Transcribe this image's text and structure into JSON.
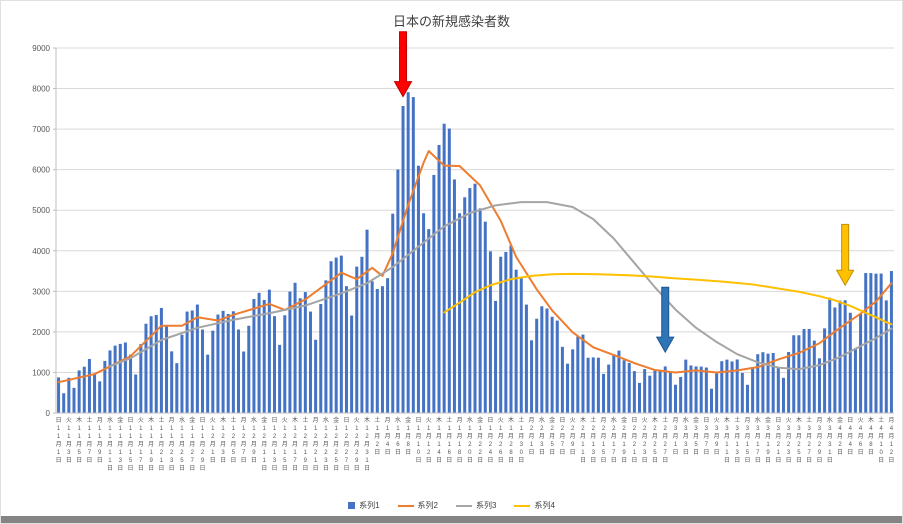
{
  "chart_data": {
    "type": "combo",
    "title": "日本の新規感染者数",
    "ylim": [
      0,
      9000
    ],
    "ytick_step": 1000,
    "grid": true,
    "legend_position": "bottom",
    "y_ticks": [
      "0",
      "1000",
      "2000",
      "3000",
      "4000",
      "5000",
      "6000",
      "7000",
      "8000",
      "9000"
    ],
    "x_label_every_n_days": 2,
    "x_labels": [
      [
        "日",
        11,
        1
      ],
      [
        "火",
        11,
        3
      ],
      [
        "木",
        11,
        5
      ],
      [
        "土",
        11,
        7
      ],
      [
        "月",
        11,
        9
      ],
      [
        "水",
        11,
        11
      ],
      [
        "金",
        11,
        13
      ],
      [
        "日",
        11,
        15
      ],
      [
        "火",
        11,
        17
      ],
      [
        "木",
        11,
        19
      ],
      [
        "土",
        11,
        21
      ],
      [
        "月",
        11,
        23
      ],
      [
        "水",
        11,
        25
      ],
      [
        "金",
        11,
        27
      ],
      [
        "日",
        11,
        29
      ],
      [
        "火",
        12,
        1
      ],
      [
        "木",
        12,
        3
      ],
      [
        "土",
        12,
        5
      ],
      [
        "月",
        12,
        7
      ],
      [
        "水",
        12,
        9
      ],
      [
        "金",
        12,
        11
      ],
      [
        "日",
        12,
        13
      ],
      [
        "火",
        12,
        15
      ],
      [
        "木",
        12,
        17
      ],
      [
        "土",
        12,
        19
      ],
      [
        "月",
        12,
        21
      ],
      [
        "水",
        12,
        23
      ],
      [
        "金",
        12,
        25
      ],
      [
        "日",
        12,
        27
      ],
      [
        "火",
        12,
        29
      ],
      [
        "木",
        12,
        31
      ],
      [
        "土",
        1,
        2
      ],
      [
        "月",
        1,
        4
      ],
      [
        "水",
        1,
        6
      ],
      [
        "金",
        1,
        8
      ],
      [
        "日",
        1,
        10
      ],
      [
        "火",
        1,
        12
      ],
      [
        "木",
        1,
        14
      ],
      [
        "土",
        1,
        16
      ],
      [
        "月",
        1,
        18
      ],
      [
        "水",
        1,
        20
      ],
      [
        "金",
        1,
        22
      ],
      [
        "日",
        1,
        24
      ],
      [
        "火",
        1,
        26
      ],
      [
        "木",
        1,
        28
      ],
      [
        "土",
        1,
        30
      ],
      [
        "月",
        2,
        1
      ],
      [
        "水",
        2,
        3
      ],
      [
        "金",
        2,
        5
      ],
      [
        "日",
        2,
        7
      ],
      [
        "火",
        2,
        9
      ],
      [
        "木",
        2,
        11
      ],
      [
        "土",
        2,
        13
      ],
      [
        "月",
        2,
        15
      ],
      [
        "水",
        2,
        17
      ],
      [
        "金",
        2,
        19
      ],
      [
        "日",
        2,
        21
      ],
      [
        "火",
        2,
        23
      ],
      [
        "木",
        2,
        25
      ],
      [
        "土",
        2,
        27
      ],
      [
        "月",
        3,
        1
      ],
      [
        "水",
        3,
        3
      ],
      [
        "金",
        3,
        5
      ],
      [
        "日",
        3,
        7
      ],
      [
        "火",
        3,
        9
      ],
      [
        "木",
        3,
        11
      ],
      [
        "土",
        3,
        13
      ],
      [
        "月",
        3,
        15
      ],
      [
        "水",
        3,
        17
      ],
      [
        "金",
        3,
        19
      ],
      [
        "日",
        3,
        21
      ],
      [
        "火",
        3,
        23
      ],
      [
        "木",
        3,
        25
      ],
      [
        "土",
        3,
        27
      ],
      [
        "月",
        3,
        29
      ],
      [
        "水",
        3,
        31
      ],
      [
        "金",
        4,
        2
      ],
      [
        "日",
        4,
        4
      ],
      [
        "火",
        4,
        6
      ],
      [
        "木",
        4,
        8
      ],
      [
        "土",
        4,
        10
      ],
      [
        "月",
        4,
        12
      ]
    ],
    "series": [
      {
        "name": "系列1",
        "type": "bar",
        "color": "#4472C4",
        "values": [
          877,
          487,
          867,
          620,
          1050,
          1141,
          1331,
          957,
          780,
          1284,
          1543,
          1661,
          1704,
          1738,
          1441,
          950,
          1698,
          2201,
          2386,
          2418,
          2591,
          2168,
          1520,
          1229,
          1930,
          2501,
          2527,
          2674,
          2059,
          1438,
          2030,
          2427,
          2519,
          2442,
          2508,
          2058,
          1516,
          2152,
          2811,
          2962,
          2788,
          3041,
          2388,
          1680,
          2410,
          2994,
          3211,
          2829,
          2982,
          2501,
          1806,
          2688,
          3271,
          3742,
          3832,
          3881,
          3127,
          2403,
          3610,
          3852,
          4520,
          3246,
          3057,
          3127,
          3325,
          4915,
          6004,
          7570,
          7911,
          7790,
          6097,
          4925,
          4534,
          5870,
          6609,
          7133,
          7014,
          5759,
          4925,
          5320,
          5546,
          5653,
          5045,
          4717,
          3985,
          2764,
          3853,
          3970,
          4131,
          3534,
          3344,
          2673,
          1792,
          2324,
          2631,
          2576,
          2372,
          2279,
          1631,
          1216,
          1570,
          1887,
          1934,
          1362,
          1371,
          1364,
          965,
          1194,
          1448,
          1538,
          1301,
          1234,
          1032,
          742,
          1083,
          920,
          1076,
          1029,
          1148,
          999,
          697,
          888,
          1316,
          1173,
          1148,
          1144,
          1121,
          599,
          974,
          1277,
          1316,
          1271,
          1320,
          988,
          695,
          1133,
          1450,
          1499,
          1463,
          1480,
          1121,
          867,
          1504,
          1917,
          1917,
          2070,
          2072,
          1785,
          1348,
          2087,
          2843,
          2602,
          2770,
          2779,
          2472,
          1598,
          2447,
          3451,
          3449,
          3436,
          3438,
          2777,
          3500
        ]
      },
      {
        "name": "系列2",
        "type": "line",
        "color": "#ED7D31",
        "points": [
          [
            0,
            760
          ],
          [
            7,
            960
          ],
          [
            14,
            1400
          ],
          [
            20,
            2150
          ],
          [
            24,
            2150
          ],
          [
            27,
            2360
          ],
          [
            31,
            2280
          ],
          [
            34,
            2420
          ],
          [
            41,
            2690
          ],
          [
            44,
            2540
          ],
          [
            48,
            2800
          ],
          [
            55,
            3460
          ],
          [
            58,
            3300
          ],
          [
            61,
            3580
          ],
          [
            63,
            3380
          ],
          [
            65,
            3940
          ],
          [
            68,
            5130
          ],
          [
            71,
            6170
          ],
          [
            72,
            6460
          ],
          [
            75,
            6100
          ],
          [
            78,
            6090
          ],
          [
            82,
            5610
          ],
          [
            86,
            4740
          ],
          [
            89,
            3850
          ],
          [
            93,
            3050
          ],
          [
            96,
            2530
          ],
          [
            100,
            1990
          ],
          [
            104,
            1620
          ],
          [
            108,
            1430
          ],
          [
            112,
            1230
          ],
          [
            116,
            1060
          ],
          [
            120,
            1000
          ],
          [
            124,
            1050
          ],
          [
            128,
            1000
          ],
          [
            132,
            1050
          ],
          [
            136,
            1130
          ],
          [
            140,
            1320
          ],
          [
            144,
            1480
          ],
          [
            148,
            1720
          ],
          [
            152,
            2100
          ],
          [
            156,
            2450
          ],
          [
            159,
            2750
          ],
          [
            161,
            3050
          ],
          [
            162,
            3200
          ]
        ]
      },
      {
        "name": "系列3",
        "type": "line",
        "color": "#A5A5A5",
        "points": [
          [
            10,
            1150
          ],
          [
            14,
            1350
          ],
          [
            20,
            1800
          ],
          [
            27,
            2100
          ],
          [
            34,
            2300
          ],
          [
            41,
            2460
          ],
          [
            48,
            2650
          ],
          [
            55,
            2950
          ],
          [
            60,
            3200
          ],
          [
            65,
            3600
          ],
          [
            70,
            4100
          ],
          [
            75,
            4600
          ],
          [
            80,
            4930
          ],
          [
            85,
            5120
          ],
          [
            90,
            5200
          ],
          [
            95,
            5200
          ],
          [
            100,
            5080
          ],
          [
            104,
            4780
          ],
          [
            108,
            4300
          ],
          [
            112,
            3700
          ],
          [
            116,
            3100
          ],
          [
            120,
            2550
          ],
          [
            124,
            2100
          ],
          [
            128,
            1750
          ],
          [
            132,
            1450
          ],
          [
            136,
            1250
          ],
          [
            140,
            1120
          ],
          [
            144,
            1080
          ],
          [
            148,
            1180
          ],
          [
            152,
            1380
          ],
          [
            156,
            1650
          ],
          [
            159,
            1850
          ],
          [
            162,
            2080
          ]
        ]
      },
      {
        "name": "系列4",
        "type": "line",
        "color": "#FFC000",
        "points": [
          [
            75,
            2480
          ],
          [
            78,
            2720
          ],
          [
            81,
            2980
          ],
          [
            84,
            3150
          ],
          [
            88,
            3300
          ],
          [
            92,
            3380
          ],
          [
            96,
            3420
          ],
          [
            100,
            3430
          ],
          [
            105,
            3420
          ],
          [
            110,
            3400
          ],
          [
            115,
            3370
          ],
          [
            120,
            3320
          ],
          [
            125,
            3280
          ],
          [
            130,
            3230
          ],
          [
            135,
            3170
          ],
          [
            140,
            3070
          ],
          [
            144,
            2990
          ],
          [
            148,
            2880
          ],
          [
            151,
            2780
          ],
          [
            154,
            2640
          ],
          [
            157,
            2470
          ],
          [
            159,
            2360
          ],
          [
            161,
            2240
          ],
          [
            162,
            2190
          ]
        ]
      }
    ],
    "annotations": [
      {
        "name": "red-arrow",
        "color": "#FF0000",
        "outline": "#C00000",
        "day": 67,
        "from": 9400,
        "to": 7800
      },
      {
        "name": "blue-arrow",
        "color": "#2E75B6",
        "outline": "#1F5597",
        "day": 118,
        "from": 3100,
        "to": 1500
      },
      {
        "name": "yellow-arrow",
        "color": "#FFC000",
        "outline": "#BF9000",
        "day": 153,
        "from": 4650,
        "to": 3150
      }
    ]
  }
}
